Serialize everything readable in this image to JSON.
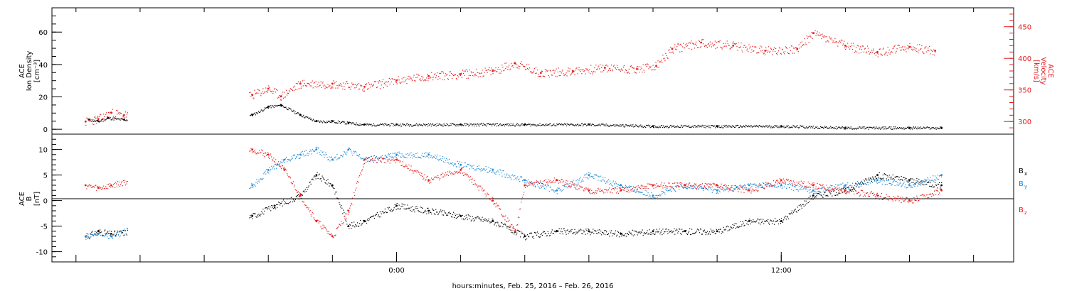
{
  "chart_data": [
    {
      "type": "scatter",
      "panel": "top",
      "ylabel_left": [
        "ACE",
        "Ion Density",
        "[cm⁻³]"
      ],
      "ylabel_right": [
        "ACE",
        "Velocity",
        "[km/s]"
      ],
      "yticks_left": [
        "0",
        "20",
        "40",
        "60"
      ],
      "yticks_right": [
        "300",
        "350",
        "400",
        "450"
      ],
      "ylim_left": [
        -3,
        75
      ],
      "ylim_right": [
        280,
        480
      ],
      "colors": {
        "density": "#000000",
        "velocity": "#e41a1c"
      },
      "series": [
        {
          "key": "density",
          "axis": "left",
          "x": [
            -9.6,
            -9.3,
            -9.0,
            -8.5,
            -4.5,
            -4.0,
            -3.6,
            -3.0,
            -2.5,
            -2.0,
            -1.5,
            -1.0,
            0,
            2,
            4,
            6,
            8,
            10,
            12,
            14,
            16,
            17
          ],
          "y": [
            6,
            5,
            7,
            6,
            9,
            14,
            15,
            9,
            5,
            5,
            4,
            3,
            3,
            3,
            3,
            3,
            2,
            2,
            2,
            1,
            1,
            1
          ]
        },
        {
          "key": "velocity",
          "axis": "right",
          "x": [
            -9.7,
            -9.3,
            -8.9,
            -8.5,
            -4.5,
            -4.0,
            -3.6,
            -3.0,
            -2.0,
            -1.0,
            0.0,
            1.0,
            2.0,
            3.0,
            3.7,
            4.5,
            5.5,
            6.5,
            7.5,
            8.1,
            8.6,
            9.5,
            10.5,
            11.5,
            12.5,
            13.0,
            14.0,
            15.0,
            16.0,
            16.8
          ],
          "y": [
            300,
            304,
            314,
            310,
            342,
            352,
            340,
            360,
            360,
            355,
            365,
            372,
            375,
            380,
            392,
            377,
            380,
            385,
            383,
            388,
            415,
            425,
            420,
            412,
            415,
            440,
            420,
            410,
            418,
            412
          ]
        }
      ]
    },
    {
      "type": "scatter",
      "panel": "bottom",
      "ylabel_left": [
        "ACE",
        "B",
        "[nT]"
      ],
      "yticks_left": [
        "-10",
        "-5",
        "0",
        "5",
        "10"
      ],
      "ylim_left": [
        -12,
        13
      ],
      "legend": [
        "Bx",
        "By",
        "Bz"
      ],
      "colors": {
        "Bx": "#000000",
        "By": "#1f8ad8",
        "Bz": "#e41a1c"
      },
      "series": [
        {
          "name": "Bx",
          "x": [
            -9.7,
            -9.3,
            -8.9,
            -4.5,
            -3.8,
            -3.0,
            -2.5,
            -2.0,
            -1.5,
            -1.0,
            0.0,
            1.0,
            2.0,
            3.0,
            4.0,
            5.0,
            6.0,
            7.0,
            8.0,
            9.0,
            10.0,
            11.0,
            12.0,
            13.0,
            14.0,
            15.0,
            16.0,
            17.0
          ],
          "y": [
            -7,
            -6,
            -6.5,
            -3,
            -1,
            1,
            5,
            3,
            -5,
            -4,
            -1,
            -2,
            -3,
            -4,
            -7,
            -6,
            -6,
            -6.5,
            -6,
            -6,
            -6,
            -4,
            -4,
            1,
            2,
            5,
            4,
            3
          ]
        },
        {
          "name": "By",
          "x": [
            -9.7,
            -9.3,
            -8.9,
            -4.5,
            -4.0,
            -3.5,
            -3.0,
            -2.5,
            -2.0,
            -1.5,
            -1.0,
            0.0,
            1.0,
            2.0,
            3.0,
            4.0,
            5.0,
            6.0,
            7.0,
            8.0,
            9.0,
            10.0,
            11.0,
            12.0,
            13.0,
            14.0,
            15.0,
            16.0,
            17.0
          ],
          "y": [
            -7,
            -6.5,
            -7,
            3,
            6,
            8,
            9,
            10,
            8,
            10,
            8,
            9,
            9,
            7,
            6,
            4,
            2,
            5,
            3,
            1,
            3,
            2,
            3,
            3,
            2,
            3,
            4,
            3,
            5
          ]
        },
        {
          "name": "Bz",
          "x": [
            -9.7,
            -9.3,
            -8.9,
            -4.5,
            -4.0,
            -3.5,
            -3.0,
            -2.5,
            -2.0,
            -1.5,
            -1.0,
            0.0,
            1.0,
            2.0,
            3.0,
            3.7,
            4.0,
            5.0,
            6.0,
            7.0,
            8.0,
            9.0,
            10.0,
            11.0,
            12.0,
            13.0,
            14.0,
            15.0,
            16.0,
            17.0
          ],
          "y": [
            3,
            2.5,
            3,
            10,
            9,
            6,
            1,
            -4,
            -7,
            -2,
            8,
            8,
            4,
            6,
            0,
            -6,
            3,
            4,
            2,
            2,
            3,
            3,
            3,
            2,
            4,
            3,
            2,
            1,
            0,
            2
          ]
        }
      ]
    }
  ],
  "xaxis": {
    "xlim": [
      -10.75,
      19.25
    ],
    "tick_labels": [
      {
        "x": 0,
        "label": "0:00"
      },
      {
        "x": 12,
        "label": "12:00"
      }
    ],
    "xlabel": "hours:minutes, Feb. 25, 2016 – Feb. 26, 2016"
  },
  "legend_labels": {
    "Bx": "B",
    "By": "B",
    "Bz": "B",
    "Bx_sub": "x",
    "By_sub": "y",
    "Bz_sub": "z"
  }
}
